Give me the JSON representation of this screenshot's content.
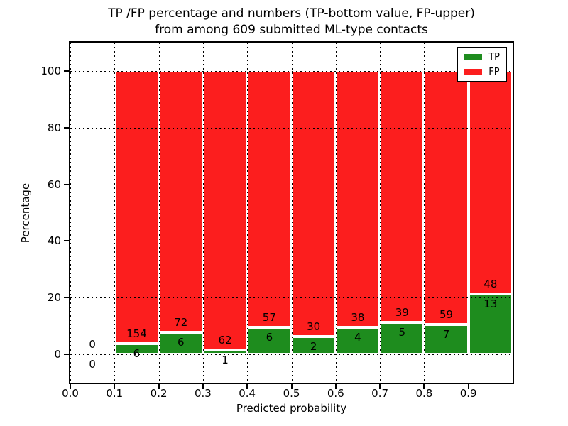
{
  "figure": {
    "title_line1": "TP /FP percentage and numbers (TP-bottom value, FP-upper)",
    "title_line2": "from among 609 submitted ML-type contacts"
  },
  "colors": {
    "tp": "#1e8c1e",
    "fp": "#fc1e1e",
    "grid": "#000000",
    "spine": "#000000",
    "background": "#ffffff"
  },
  "chart_data": {
    "type": "bar",
    "stacked": true,
    "title": "TP /FP percentage and numbers (TP-bottom value, FP-upper)\nfrom among 609 submitted ML-type contacts",
    "xlabel": "Predicted probability",
    "ylabel": "Percentage",
    "total_contacts": 609,
    "xlim": [
      0.0,
      1.0
    ],
    "ylim": [
      -10,
      110
    ],
    "x_ticks": [
      "0.0",
      "0.1",
      "0.2",
      "0.3",
      "0.4",
      "0.5",
      "0.6",
      "0.7",
      "0.8",
      "0.9"
    ],
    "y_ticks": [
      0,
      20,
      40,
      60,
      80,
      100
    ],
    "grid": true,
    "grid_style": "dotted",
    "legend": {
      "position": "upper right",
      "entries": [
        {
          "label": "TP",
          "color": "#1e8c1e"
        },
        {
          "label": "FP",
          "color": "#fc1e1e"
        }
      ]
    },
    "bins": [
      {
        "x0": 0.0,
        "x1": 0.1,
        "tp": 0,
        "fp": 0
      },
      {
        "x0": 0.1,
        "x1": 0.2,
        "tp": 6,
        "fp": 154
      },
      {
        "x0": 0.2,
        "x1": 0.3,
        "tp": 6,
        "fp": 72
      },
      {
        "x0": 0.3,
        "x1": 0.4,
        "tp": 1,
        "fp": 62
      },
      {
        "x0": 0.4,
        "x1": 0.5,
        "tp": 6,
        "fp": 57
      },
      {
        "x0": 0.5,
        "x1": 0.6,
        "tp": 2,
        "fp": 30
      },
      {
        "x0": 0.6,
        "x1": 0.7,
        "tp": 4,
        "fp": 38
      },
      {
        "x0": 0.7,
        "x1": 0.8,
        "tp": 5,
        "fp": 39
      },
      {
        "x0": 0.8,
        "x1": 0.9,
        "tp": 7,
        "fp": 59
      },
      {
        "x0": 0.9,
        "x1": 1.0,
        "tp": 13,
        "fp": 48
      }
    ]
  }
}
